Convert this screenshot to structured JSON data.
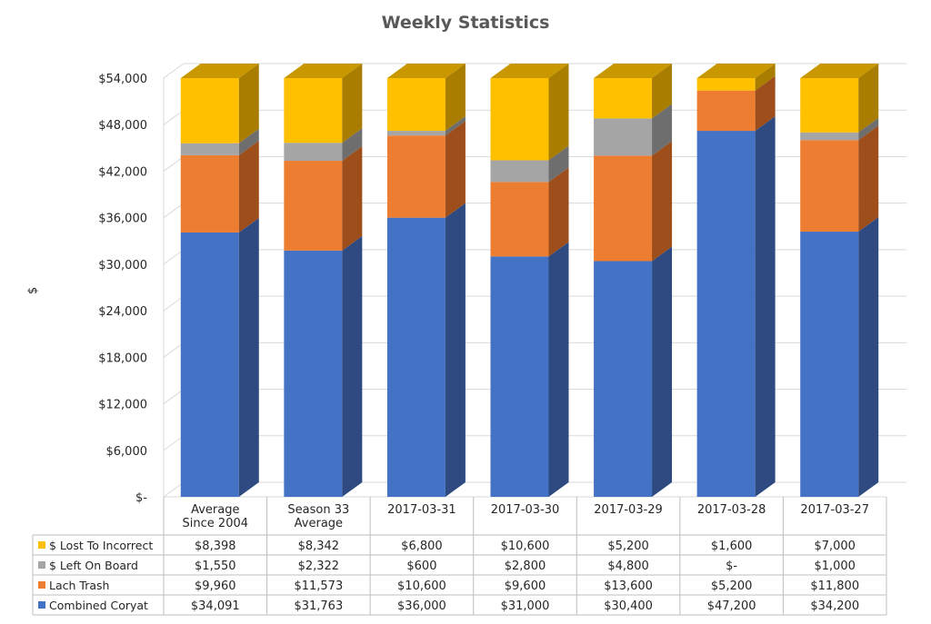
{
  "chart_data": {
    "type": "bar",
    "stacked": true,
    "style": "3d-column",
    "title": "Weekly Statistics",
    "ylabel": "$",
    "ylim": [
      0,
      54000
    ],
    "yticks": [
      0,
      6000,
      12000,
      18000,
      24000,
      30000,
      36000,
      42000,
      48000,
      54000
    ],
    "ytick_labels": [
      "$-",
      "$6,000",
      "$12,000",
      "$18,000",
      "$24,000",
      "$30,000",
      "$36,000",
      "$42,000",
      "$48,000",
      "$54,000"
    ],
    "grid": true,
    "legend": "data-table",
    "categories": [
      [
        "Average",
        "Since 2004"
      ],
      [
        "Season 33",
        "Average"
      ],
      [
        "2017-03-31"
      ],
      [
        "2017-03-30"
      ],
      [
        "2017-03-29"
      ],
      [
        "2017-03-28"
      ],
      [
        "2017-03-27"
      ]
    ],
    "series": [
      {
        "name": "Combined Coryat",
        "color": "#4472C4",
        "side": "#2E4A80",
        "top": "#3A62AA",
        "values": [
          34091,
          31763,
          36000,
          31000,
          30400,
          47200,
          34200
        ],
        "labels": [
          "$34,091",
          "$31,763",
          "$36,000",
          "$31,000",
          "$30,400",
          "$47,200",
          "$34,200"
        ]
      },
      {
        "name": "Lach Trash",
        "color": "#ED7D31",
        "side": "#9E4E1B",
        "top": "#C5651F",
        "values": [
          9960,
          11573,
          10600,
          9600,
          13600,
          5200,
          11800
        ],
        "labels": [
          "$9,960",
          "$11,573",
          "$10,600",
          "$9,600",
          "$13,600",
          "$5,200",
          "$11,800"
        ]
      },
      {
        "name": "$ Left On Board",
        "color": "#A5A5A5",
        "side": "#6E6E6E",
        "top": "#8A8A8A",
        "values": [
          1550,
          2322,
          600,
          2800,
          4800,
          0,
          1000
        ],
        "labels": [
          "$1,550",
          "$2,322",
          "$600",
          "$2,800",
          "$4,800",
          "$-",
          "$1,000"
        ]
      },
      {
        "name": "$ Lost To Incorrect",
        "color": "#FFC000",
        "side": "#A87D00",
        "top": "#C99700",
        "values": [
          8398,
          8342,
          6800,
          10600,
          5200,
          1600,
          7000
        ],
        "labels": [
          "$8,398",
          "$8,342",
          "$6,800",
          "$10,600",
          "$5,200",
          "$1,600",
          "$7,000"
        ]
      }
    ]
  }
}
